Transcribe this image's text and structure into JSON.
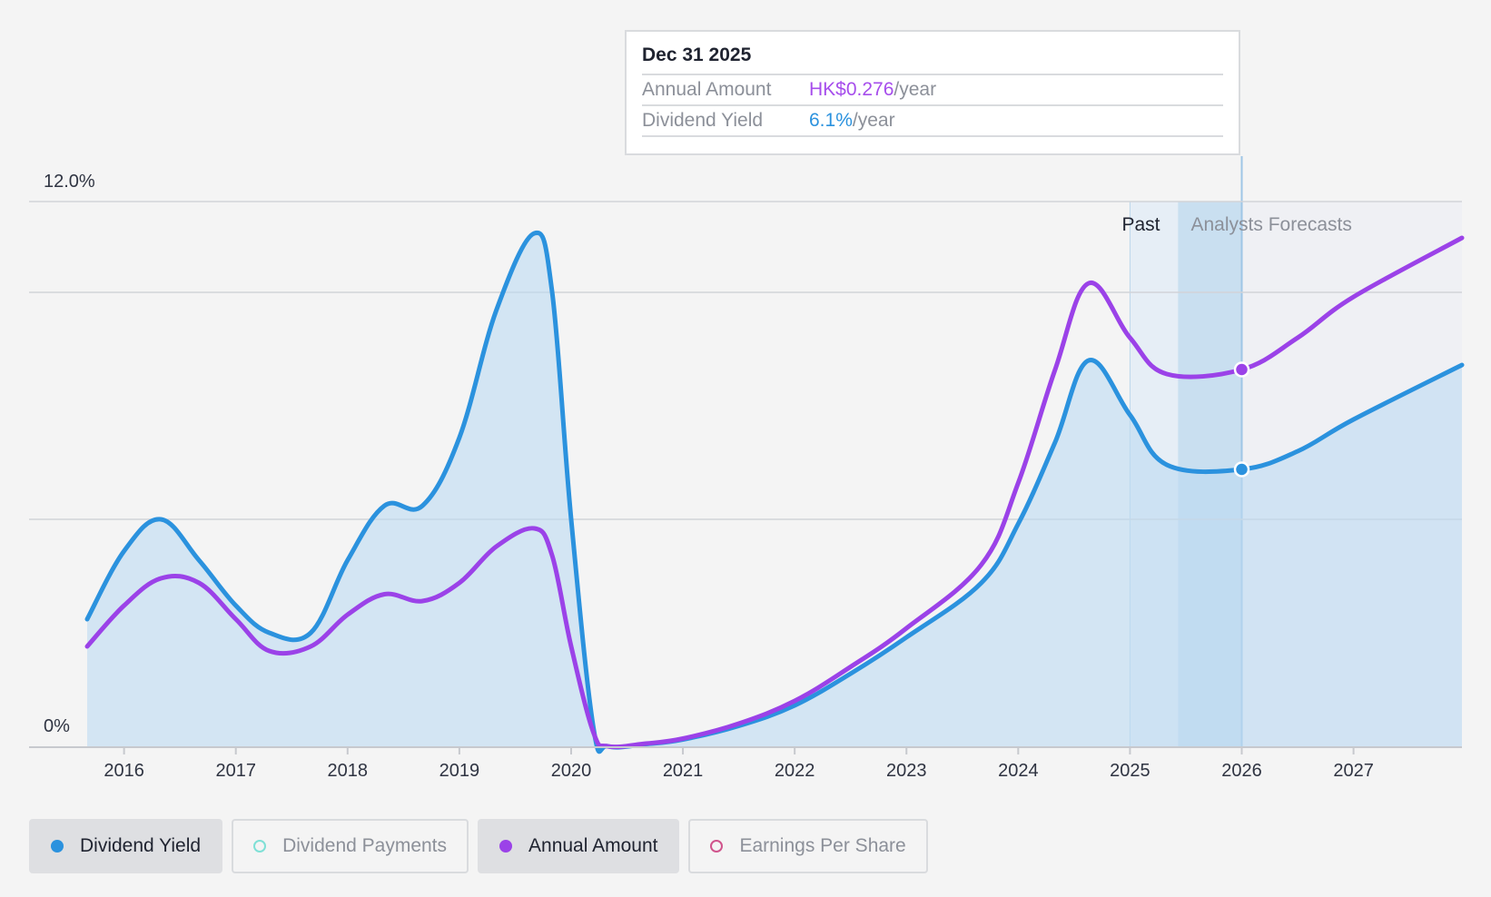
{
  "colors": {
    "dividend_yield": "#2b92de",
    "annual_amount": "#9b42e8",
    "dividend_payments": "#7fe0d6",
    "earnings_per_share": "#d0548c"
  },
  "tooltip": {
    "date": "Dec 31 2025",
    "rows": [
      {
        "label": "Annual Amount",
        "value": "HK$0.276",
        "unit": "/year",
        "color": "#a64dec"
      },
      {
        "label": "Dividend Yield",
        "value": "6.1%",
        "unit": "/year",
        "color": "#2b92de"
      }
    ]
  },
  "legend": [
    {
      "label": "Dividend Yield",
      "active": true,
      "dot_color": "#2b92de",
      "filled": true
    },
    {
      "label": "Dividend Payments",
      "active": false,
      "dot_color": "#7fe0d6",
      "filled": false
    },
    {
      "label": "Annual Amount",
      "active": true,
      "dot_color": "#9b42e8",
      "filled": true
    },
    {
      "label": "Earnings Per Share",
      "active": false,
      "dot_color": "#d0548c",
      "filled": false
    }
  ],
  "chart_data": {
    "type": "line",
    "y_tick_labels": [
      "12.0%",
      "0%"
    ],
    "ylim": [
      0,
      12
    ],
    "xlim": [
      2015.3,
      2027.97
    ],
    "x_tick_labels": [
      "2016",
      "2017",
      "2018",
      "2019",
      "2020",
      "2021",
      "2022",
      "2023",
      "2024",
      "2025",
      "2026",
      "2027"
    ],
    "x_ticks": [
      2016,
      2017,
      2018,
      2019,
      2020,
      2021,
      2022,
      2023,
      2024,
      2025,
      2026,
      2027
    ],
    "regions": {
      "past_label": "Past",
      "forecast_label": "Analysts Forecasts",
      "past_band_start": 2025.0,
      "forecast_band_start": 2025.43,
      "divider": 2026.0
    },
    "gridlines": [
      12,
      10,
      5
    ],
    "series": [
      {
        "name": "Dividend Yield",
        "filled": true,
        "points": [
          [
            2015.67,
            2.8
          ],
          [
            2016.0,
            4.3
          ],
          [
            2016.33,
            5.0
          ],
          [
            2016.67,
            4.1
          ],
          [
            2017.0,
            3.1
          ],
          [
            2017.3,
            2.5
          ],
          [
            2017.67,
            2.5
          ],
          [
            2018.0,
            4.1
          ],
          [
            2018.33,
            5.3
          ],
          [
            2018.67,
            5.3
          ],
          [
            2019.0,
            6.8
          ],
          [
            2019.33,
            9.6
          ],
          [
            2019.67,
            11.3
          ],
          [
            2019.83,
            10.0
          ],
          [
            2020.0,
            5.0
          ],
          [
            2020.2,
            0.4
          ],
          [
            2020.33,
            0.0
          ],
          [
            2020.67,
            0.05
          ],
          [
            2021.0,
            0.15
          ],
          [
            2021.5,
            0.45
          ],
          [
            2022.0,
            0.9
          ],
          [
            2022.5,
            1.6
          ],
          [
            2023.0,
            2.4
          ],
          [
            2023.67,
            3.6
          ],
          [
            2024.0,
            4.9
          ],
          [
            2024.33,
            6.7
          ],
          [
            2024.63,
            8.5
          ],
          [
            2025.0,
            7.3
          ],
          [
            2025.33,
            6.2
          ],
          [
            2026.0,
            6.1
          ],
          [
            2026.5,
            6.5
          ],
          [
            2027.0,
            7.2
          ],
          [
            2027.97,
            8.4
          ]
        ]
      },
      {
        "name": "Annual Amount",
        "filled": false,
        "points": [
          [
            2015.67,
            2.2
          ],
          [
            2016.0,
            3.1
          ],
          [
            2016.33,
            3.7
          ],
          [
            2016.67,
            3.6
          ],
          [
            2017.0,
            2.8
          ],
          [
            2017.3,
            2.1
          ],
          [
            2017.67,
            2.2
          ],
          [
            2018.0,
            2.9
          ],
          [
            2018.33,
            3.35
          ],
          [
            2018.67,
            3.2
          ],
          [
            2019.0,
            3.6
          ],
          [
            2019.33,
            4.4
          ],
          [
            2019.67,
            4.8
          ],
          [
            2019.83,
            4.2
          ],
          [
            2020.0,
            2.2
          ],
          [
            2020.2,
            0.3
          ],
          [
            2020.33,
            0.0
          ],
          [
            2020.67,
            0.06
          ],
          [
            2021.0,
            0.17
          ],
          [
            2021.5,
            0.5
          ],
          [
            2022.0,
            1.0
          ],
          [
            2022.5,
            1.75
          ],
          [
            2023.0,
            2.6
          ],
          [
            2023.67,
            4.0
          ],
          [
            2024.0,
            5.8
          ],
          [
            2024.33,
            8.3
          ],
          [
            2024.63,
            10.2
          ],
          [
            2025.0,
            9.0
          ],
          [
            2025.33,
            8.2
          ],
          [
            2026.0,
            8.3
          ],
          [
            2026.5,
            9.0
          ],
          [
            2027.0,
            9.9
          ],
          [
            2027.97,
            11.2
          ]
        ]
      }
    ],
    "highlight_x": 2026.0,
    "highlight_points": {
      "Dividend Yield": 6.1,
      "Annual Amount": 8.3
    }
  }
}
